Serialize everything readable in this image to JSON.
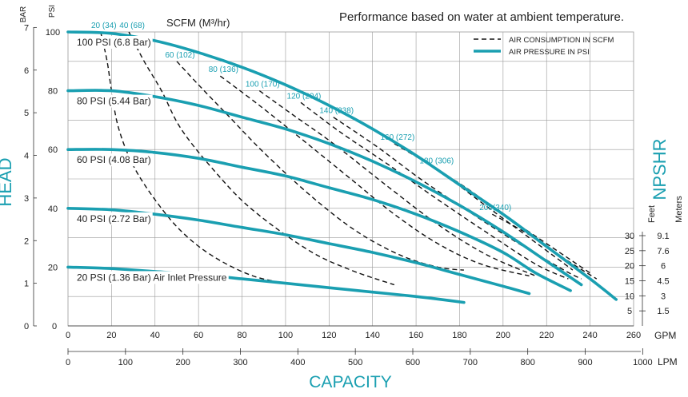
{
  "chart_data": {
    "type": "line",
    "title": "Performance based on water at ambient temperature.",
    "xlabel": "CAPACITY",
    "ylabel": "HEAD",
    "ylabel_right": "NPSHR",
    "axis_units": {
      "bar": "BAR",
      "psi": "PSI",
      "gpm": "GPM",
      "lpm": "LPM",
      "feet": "Feet",
      "meters": "Meters"
    },
    "xlim_gpm": [
      0,
      260
    ],
    "ylim_psi": [
      0,
      100
    ],
    "gpm_ticks": [
      "0",
      "20",
      "40",
      "60",
      "80",
      "100",
      "120",
      "140",
      "160",
      "180",
      "200",
      "220",
      "240",
      "260"
    ],
    "lpm_ticks": [
      "0",
      "100",
      "200",
      "300",
      "400",
      "500",
      "600",
      "700",
      "800",
      "900",
      "1000"
    ],
    "psi_ticks": [
      "20",
      "40",
      "60",
      "80",
      "100"
    ],
    "bar_ticks": [
      "0",
      "1",
      "2",
      "3",
      "4",
      "5",
      "6",
      "7"
    ],
    "npshr_ticks": [
      {
        "feet": "5",
        "meters": "1.5"
      },
      {
        "feet": "10",
        "meters": "3"
      },
      {
        "feet": "15",
        "meters": "4.5"
      },
      {
        "feet": "20",
        "meters": "6"
      },
      {
        "feet": "25",
        "meters": "7.6"
      },
      {
        "feet": "30",
        "meters": "9.1"
      }
    ],
    "legend": {
      "position": "top-right",
      "items": [
        {
          "label": "AIR CONSUMPTION IN SCFM",
          "style": "dashed"
        },
        {
          "label": "AIR PRESSURE IN PSI",
          "style": "solid"
        }
      ]
    },
    "scfm_header": "SCFM (M³/hr)",
    "series": [
      {
        "name": "100 PSI (6.8 Bar)",
        "points": [
          [
            0,
            100
          ],
          [
            20,
            99.5
          ],
          [
            40,
            97
          ],
          [
            60,
            93
          ],
          [
            80,
            88
          ],
          [
            100,
            82
          ],
          [
            120,
            75
          ],
          [
            140,
            67
          ],
          [
            160,
            58
          ],
          [
            180,
            48
          ],
          [
            200,
            38
          ],
          [
            220,
            27
          ],
          [
            240,
            16
          ],
          [
            252,
            9
          ]
        ]
      },
      {
        "name": "80 PSI (5.44 Bar)",
        "points": [
          [
            0,
            80
          ],
          [
            20,
            80
          ],
          [
            40,
            78
          ],
          [
            60,
            75
          ],
          [
            80,
            71
          ],
          [
            100,
            67
          ],
          [
            120,
            62
          ],
          [
            140,
            56
          ],
          [
            160,
            49
          ],
          [
            180,
            41
          ],
          [
            200,
            32
          ],
          [
            220,
            22
          ],
          [
            236,
            14
          ]
        ]
      },
      {
        "name": "60 PSI (4.08 Bar)",
        "points": [
          [
            0,
            60
          ],
          [
            20,
            60
          ],
          [
            40,
            59
          ],
          [
            60,
            57
          ],
          [
            80,
            54
          ],
          [
            100,
            51
          ],
          [
            120,
            47
          ],
          [
            140,
            43
          ],
          [
            160,
            38
          ],
          [
            180,
            32
          ],
          [
            200,
            25
          ],
          [
            215,
            18
          ],
          [
            231,
            12
          ]
        ]
      },
      {
        "name": "40 PSI (2.72 Bar)",
        "points": [
          [
            0,
            40
          ],
          [
            20,
            39.5
          ],
          [
            40,
            38
          ],
          [
            60,
            36
          ],
          [
            80,
            33.5
          ],
          [
            100,
            31
          ],
          [
            120,
            28
          ],
          [
            140,
            25
          ],
          [
            160,
            21.5
          ],
          [
            180,
            17.5
          ],
          [
            200,
            13.5
          ],
          [
            212,
            11
          ]
        ]
      },
      {
        "name": "20 PSI (1.36 Bar) Air Inlet Pressure",
        "points": [
          [
            0,
            20
          ],
          [
            20,
            19.5
          ],
          [
            40,
            18.5
          ],
          [
            60,
            17.5
          ],
          [
            80,
            16
          ],
          [
            100,
            14.5
          ],
          [
            120,
            13
          ],
          [
            140,
            11.5
          ],
          [
            160,
            10
          ],
          [
            182,
            8
          ]
        ]
      }
    ],
    "air_consumption": [
      {
        "label": "20 (34)",
        "points": [
          [
            15,
            100
          ],
          [
            18,
            90
          ],
          [
            20,
            80
          ],
          [
            23,
            68
          ],
          [
            29,
            56
          ],
          [
            38,
            45
          ],
          [
            51,
            33
          ],
          [
            66,
            24
          ],
          [
            85,
            17
          ],
          [
            104,
            14
          ]
        ]
      },
      {
        "label": "40 (68)",
        "points": [
          [
            28,
            100
          ],
          [
            35,
            90
          ],
          [
            43,
            80
          ],
          [
            52,
            67
          ],
          [
            67,
            53
          ],
          [
            84,
            40
          ],
          [
            110,
            26
          ],
          [
            130,
            19
          ],
          [
            150,
            14
          ]
        ]
      },
      {
        "label": "60 (102)",
        "points": [
          [
            50,
            90
          ],
          [
            60,
            82
          ],
          [
            73,
            72
          ],
          [
            90,
            59
          ],
          [
            112,
            44
          ],
          [
            133,
            32
          ],
          [
            153,
            24
          ],
          [
            170,
            20
          ],
          [
            182,
            19
          ]
        ]
      },
      {
        "label": "80 (136)",
        "points": [
          [
            70,
            85
          ],
          [
            88,
            75
          ],
          [
            110,
            62
          ],
          [
            130,
            50
          ],
          [
            150,
            38
          ],
          [
            170,
            28
          ],
          [
            190,
            21
          ],
          [
            212,
            17
          ]
        ]
      },
      {
        "label": "100 (170)",
        "points": [
          [
            88,
            80
          ],
          [
            103,
            72
          ],
          [
            122,
            62
          ],
          [
            146,
            48
          ],
          [
            171,
            34
          ],
          [
            193,
            24
          ],
          [
            215,
            17
          ]
        ]
      },
      {
        "label": "120 (204)",
        "points": [
          [
            107,
            76
          ],
          [
            125,
            66
          ],
          [
            147,
            55
          ],
          [
            168,
            44
          ],
          [
            192,
            32
          ],
          [
            215,
            21
          ],
          [
            230,
            16
          ]
        ]
      },
      {
        "label": "140 (238)",
        "points": [
          [
            122,
            71
          ],
          [
            142,
            61
          ],
          [
            162,
            50
          ],
          [
            182,
            40
          ],
          [
            205,
            29
          ],
          [
            228,
            19
          ],
          [
            236,
            16
          ]
        ]
      },
      {
        "label": "160 (272)",
        "points": [
          [
            150,
            62
          ],
          [
            170,
            53
          ],
          [
            190,
            42
          ],
          [
            212,
            30
          ],
          [
            232,
            19
          ]
        ]
      },
      {
        "label": "180 (306)",
        "points": [
          [
            168,
            54
          ],
          [
            183,
            47
          ],
          [
            200,
            38
          ],
          [
            220,
            28
          ],
          [
            236,
            20
          ],
          [
            240,
            18
          ]
        ]
      },
      {
        "label": "200(340)",
        "points": [
          [
            195,
            38
          ],
          [
            212,
            31
          ],
          [
            230,
            22
          ],
          [
            243,
            16
          ]
        ]
      }
    ]
  }
}
